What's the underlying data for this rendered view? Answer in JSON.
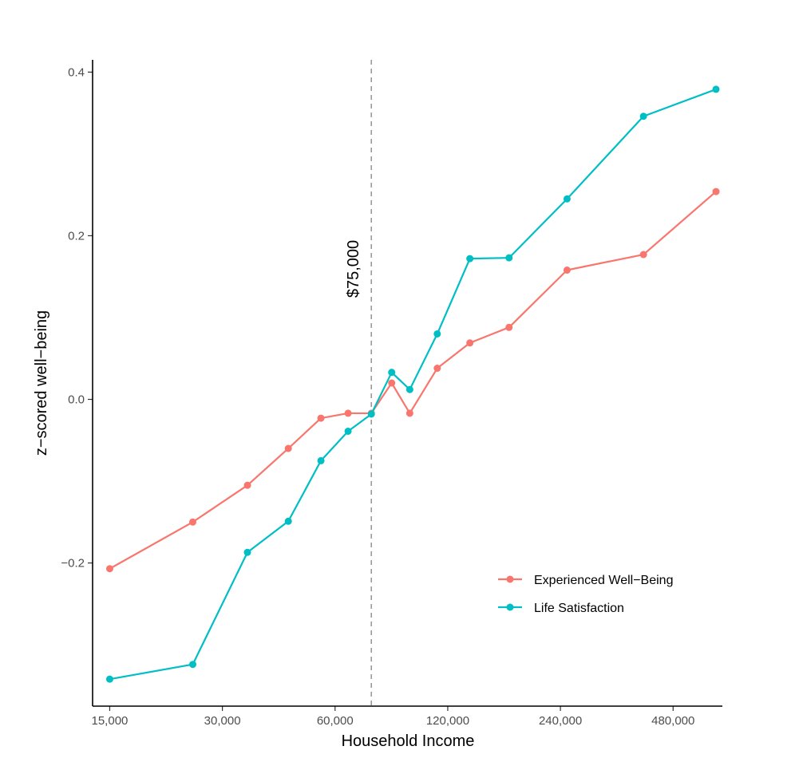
{
  "chart_data": {
    "type": "line",
    "title": "",
    "xlabel": "Household Income",
    "ylabel": "z−scored well−being",
    "x_scale": "log2",
    "xlim": [
      13500,
      650000
    ],
    "ylim": [
      -0.375,
      0.415
    ],
    "x_ticks": [
      15000,
      30000,
      60000,
      120000,
      240000,
      480000
    ],
    "x_tick_labels": [
      "15,000",
      "30,000",
      "60,000",
      "120,000",
      "240,000",
      "480,000"
    ],
    "y_ticks": [
      -0.2,
      0.0,
      0.2,
      0.4
    ],
    "y_tick_labels": [
      "−0.2",
      "0.0",
      "0.2",
      "0.4"
    ],
    "grid": false,
    "legend_position": "bottom-right",
    "reference_line": {
      "x": 75000,
      "style": "dashed",
      "color": "#999999",
      "label": "$75,000"
    },
    "series": [
      {
        "name": "Experienced Well−Being",
        "color": "#F8766D",
        "x": [
          15000,
          25000,
          35000,
          45000,
          55000,
          65000,
          75000,
          85000,
          95000,
          112500,
          137500,
          175000,
          250000,
          400000,
          625000
        ],
        "y": [
          -0.207,
          -0.15,
          -0.105,
          -0.06,
          -0.023,
          -0.017,
          -0.017,
          0.02,
          -0.017,
          0.038,
          0.069,
          0.088,
          0.158,
          0.177,
          0.254
        ]
      },
      {
        "name": "Life Satisfaction",
        "color": "#00BFC4",
        "x": [
          15000,
          25000,
          35000,
          45000,
          55000,
          65000,
          75000,
          85000,
          95000,
          112500,
          137500,
          175000,
          250000,
          400000,
          625000
        ],
        "y": [
          -0.342,
          -0.324,
          -0.187,
          -0.149,
          -0.075,
          -0.039,
          -0.018,
          0.033,
          0.012,
          0.08,
          0.172,
          0.173,
          0.245,
          0.346,
          0.379
        ]
      }
    ]
  }
}
